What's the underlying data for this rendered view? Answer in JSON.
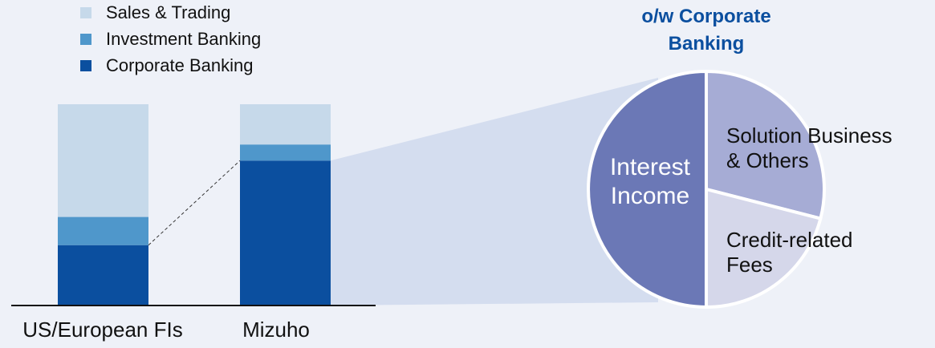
{
  "chart_data": [
    {
      "type": "bar",
      "stacked": true,
      "categories": [
        "US/European FIs",
        "Mizuho"
      ],
      "series": [
        {
          "name": "Corporate Banking",
          "values": [
            30,
            72
          ],
          "color": "#0b4f9f"
        },
        {
          "name": "Investment Banking",
          "values": [
            14,
            8
          ],
          "color": "#4f97cb"
        },
        {
          "name": "Sales & Trading",
          "values": [
            56,
            20
          ],
          "color": "#c6d9ea"
        }
      ],
      "ylim": [
        0,
        100
      ],
      "value_units": "share of total (%)",
      "title": "",
      "xlabel": "",
      "ylabel": "",
      "legend": {
        "position": "top-left",
        "order": [
          "Sales & Trading",
          "Investment Banking",
          "Corporate Banking"
        ]
      },
      "grid": false
    },
    {
      "type": "pie",
      "title": "o/w Corporate Banking",
      "title_lines": [
        "o/w Corporate",
        "Banking"
      ],
      "slices": [
        {
          "name": "Solution Business & Others",
          "label_lines": [
            "Solution Business",
            "& Others"
          ],
          "value": 29,
          "color": "#a6acd5"
        },
        {
          "name": "Credit-related Fees",
          "label_lines": [
            "Credit-related",
            "Fees"
          ],
          "value": 21,
          "color": "#d5d7ea"
        },
        {
          "name": "Interest Income",
          "label_lines": [
            "Interest",
            "Income"
          ],
          "value": 50,
          "color": "#6b78b6"
        }
      ],
      "start_angle_deg": 0,
      "direction": "clockwise"
    }
  ],
  "colors": {
    "background": "#eef1f8",
    "zoom_wedge": "#d4ddef",
    "title": "#0b4f9f",
    "axis": "#111111"
  }
}
